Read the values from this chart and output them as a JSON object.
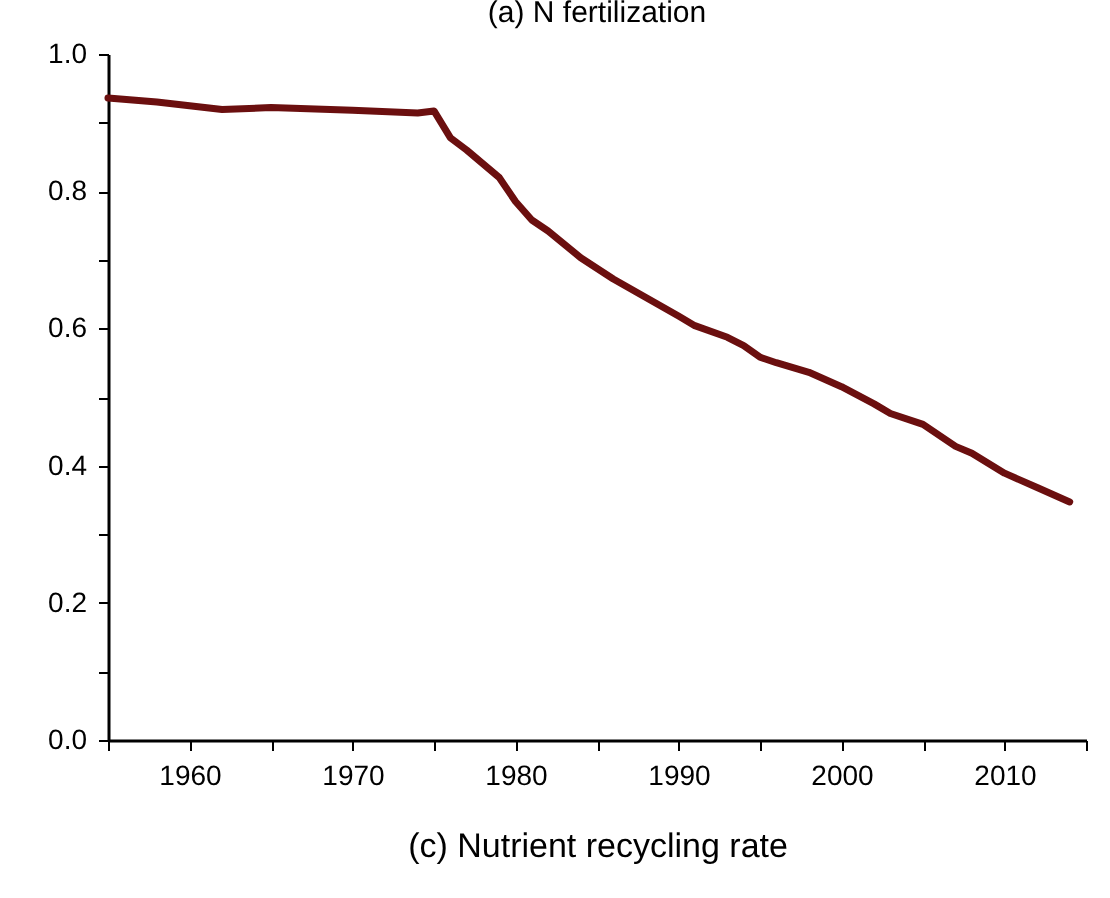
{
  "chart_data": {
    "type": "line",
    "annotations": [
      "(a) N fertilization"
    ],
    "xlabel": "(c) Nutrient recycling rate",
    "x": [
      1955,
      1958,
      1962,
      1965,
      1970,
      1974,
      1975,
      1976,
      1977,
      1979,
      1980,
      1981,
      1982,
      1984,
      1986,
      1988,
      1990,
      1991,
      1993,
      1994,
      1995,
      1996,
      1998,
      2000,
      2002,
      2003,
      2005,
      2007,
      2008,
      2010,
      2012,
      2014
    ],
    "series": [
      {
        "color": "#6b0f0f",
        "values": [
          0.936,
          0.93,
          0.919,
          0.922,
          0.918,
          0.914,
          0.917,
          0.878,
          0.86,
          0.82,
          0.785,
          0.758,
          0.742,
          0.703,
          0.672,
          0.645,
          0.618,
          0.604,
          0.587,
          0.575,
          0.558,
          0.55,
          0.536,
          0.515,
          0.49,
          0.476,
          0.46,
          0.428,
          0.418,
          0.389,
          0.368,
          0.347
        ]
      }
    ],
    "xlim": [
      1955,
      2015
    ],
    "xticks": [
      {
        "value": 1955,
        "label": null
      },
      1960,
      {
        "value": 1965,
        "label": null
      },
      1970,
      {
        "value": 1975,
        "label": null
      },
      1980,
      {
        "value": 1985,
        "label": null
      },
      1990,
      {
        "value": 1995,
        "label": null
      },
      2000,
      {
        "value": 2005,
        "label": null
      },
      2010,
      {
        "value": 2015,
        "label": null
      }
    ],
    "ylim": [
      0,
      1
    ],
    "yticks": [
      {
        "value": 0,
        "label": "0.0"
      },
      {
        "value": 0.1,
        "label": null
      },
      0.2,
      {
        "value": 0.3,
        "label": null
      },
      0.4,
      {
        "value": 0.5,
        "label": null
      },
      0.6,
      {
        "value": 0.7,
        "label": null
      },
      0.8,
      {
        "value": 0.9,
        "label": null
      },
      {
        "value": 1,
        "label": "1.0"
      }
    ],
    "grid": false,
    "legend": false,
    "marker": "none",
    "line_style": "solid"
  }
}
